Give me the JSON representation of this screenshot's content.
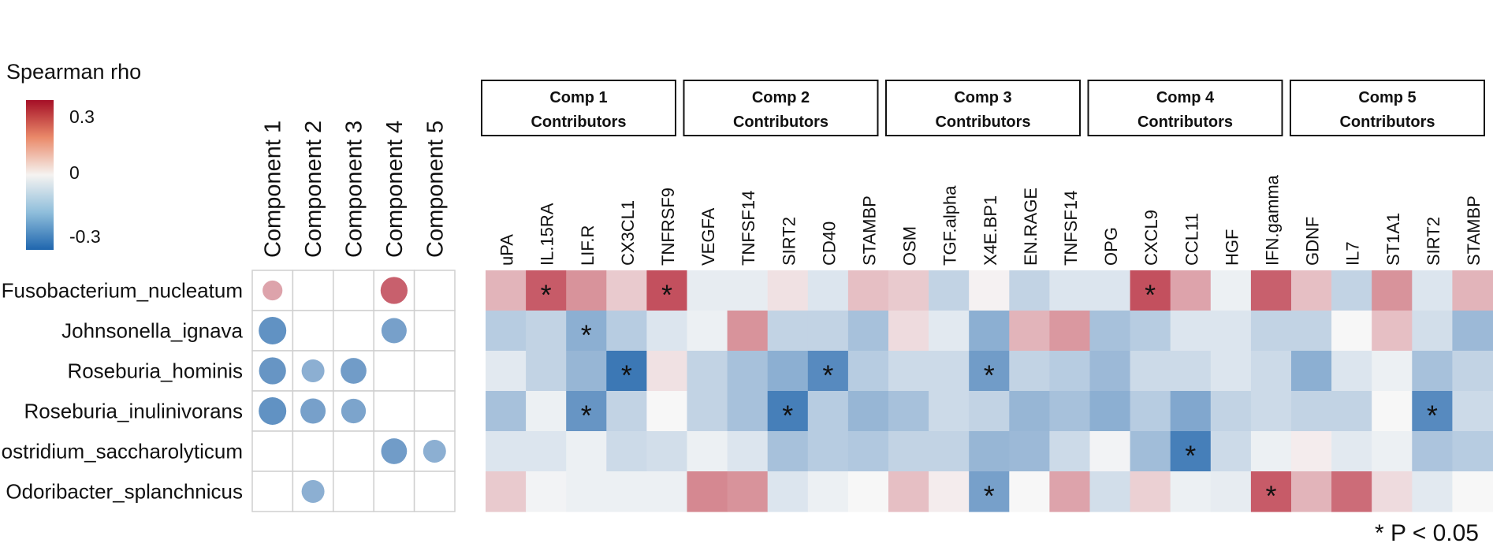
{
  "chart_data": {
    "type": "heatmap",
    "title": "",
    "legend": {
      "title": "Spearman rho",
      "ticks": [
        "0.3",
        "0",
        "-0.3"
      ],
      "range": [
        -0.4,
        0.4
      ],
      "colors": {
        "negative": "#2166ac",
        "neutral": "#f7f7f7",
        "positive": "#b2182b"
      }
    },
    "rows": [
      "Fusobacterium_nucleatum",
      "Johnsonella_ignava",
      "Roseburia_hominis",
      "Roseburia_inulinivorans",
      "Clostridium_saccharolyticum",
      "Odoribacter_splanchnicus"
    ],
    "component_columns": [
      "Component 1",
      "Component 2",
      "Component 3",
      "Component 4",
      "Component 5"
    ],
    "component_values": [
      [
        0.15,
        null,
        null,
        0.27,
        null
      ],
      [
        -0.28,
        null,
        null,
        -0.24,
        null
      ],
      [
        -0.27,
        -0.2,
        -0.25,
        null,
        null
      ],
      [
        -0.28,
        -0.24,
        -0.23,
        null,
        null
      ],
      [
        null,
        null,
        null,
        -0.25,
        -0.2
      ],
      [
        null,
        -0.2,
        null,
        null,
        null
      ]
    ],
    "groups": [
      {
        "label_line1": "Comp 1",
        "label_line2": "Contributors",
        "columns": [
          "uPA",
          "IL.15RA",
          "LIF.R",
          "CX3CL1",
          "TNFRSF9"
        ]
      },
      {
        "label_line1": "Comp 2",
        "label_line2": "Contributors",
        "columns": [
          "VEGFA",
          "TNFSF14",
          "SIRT2",
          "CD40",
          "STAMBP"
        ]
      },
      {
        "label_line1": "Comp 3",
        "label_line2": "Contributors",
        "columns": [
          "OSM",
          "TGF.alpha",
          "X4E.BP1",
          "EN.RAGE",
          "TNFSF14"
        ]
      },
      {
        "label_line1": "Comp 4",
        "label_line2": "Contributors",
        "columns": [
          "OPG",
          "CXCL9",
          "CCL11",
          "HGF",
          "IFN.gamma"
        ]
      },
      {
        "label_line1": "Comp 5",
        "label_line2": "Contributors",
        "columns": [
          "GDNF",
          "IL7",
          "ST1A1",
          "SIRT2",
          "STAMBP"
        ]
      }
    ],
    "heat_values": [
      [
        0.12,
        0.28,
        0.18,
        0.08,
        0.3,
        -0.03,
        -0.03,
        0.04,
        -0.05,
        0.1,
        0.08,
        -0.1,
        0.01,
        -0.1,
        -0.05,
        -0.05,
        0.3,
        0.15,
        -0.02,
        0.27,
        0.1,
        -0.1,
        0.18,
        -0.05,
        0.12
      ],
      [
        -0.12,
        -0.1,
        -0.2,
        -0.12,
        -0.05,
        -0.02,
        0.18,
        -0.1,
        -0.1,
        -0.15,
        0.05,
        -0.04,
        -0.2,
        0.12,
        0.17,
        -0.15,
        -0.12,
        -0.05,
        -0.05,
        -0.1,
        -0.1,
        0.0,
        0.1,
        -0.07,
        -0.17
      ],
      [
        -0.04,
        -0.1,
        -0.18,
        -0.35,
        0.04,
        -0.1,
        -0.15,
        -0.2,
        -0.3,
        -0.12,
        -0.08,
        -0.08,
        -0.25,
        -0.1,
        -0.12,
        -0.17,
        -0.08,
        -0.08,
        -0.05,
        -0.08,
        -0.2,
        -0.05,
        -0.02,
        -0.15,
        -0.1
      ],
      [
        -0.15,
        -0.02,
        -0.27,
        -0.1,
        0.0,
        -0.1,
        -0.15,
        -0.33,
        -0.12,
        -0.18,
        -0.15,
        -0.08,
        -0.1,
        -0.18,
        -0.15,
        -0.2,
        -0.12,
        -0.22,
        -0.1,
        -0.08,
        -0.1,
        -0.1,
        0.0,
        -0.3,
        -0.08
      ],
      [
        -0.05,
        -0.05,
        -0.02,
        -0.08,
        -0.07,
        -0.02,
        -0.05,
        -0.15,
        -0.12,
        -0.13,
        -0.1,
        -0.1,
        -0.18,
        -0.17,
        -0.08,
        -0.01,
        -0.16,
        -0.33,
        -0.08,
        -0.02,
        0.02,
        -0.04,
        -0.02,
        -0.14,
        -0.12
      ],
      [
        0.08,
        -0.01,
        -0.02,
        -0.02,
        -0.02,
        0.2,
        0.18,
        -0.05,
        -0.02,
        0.0,
        0.1,
        0.02,
        -0.24,
        0.0,
        0.15,
        -0.07,
        0.07,
        -0.02,
        -0.03,
        0.28,
        0.12,
        0.25,
        0.05,
        -0.04,
        0.0
      ]
    ],
    "significant_cells": [
      [
        0,
        1
      ],
      [
        0,
        4
      ],
      [
        0,
        16
      ],
      [
        1,
        2
      ],
      [
        2,
        3
      ],
      [
        2,
        8
      ],
      [
        2,
        12
      ],
      [
        3,
        2
      ],
      [
        3,
        7
      ],
      [
        3,
        23
      ],
      [
        4,
        17
      ],
      [
        5,
        12
      ],
      [
        5,
        19
      ]
    ],
    "significance_marker": "*",
    "footnote": "* P < 0.05"
  }
}
